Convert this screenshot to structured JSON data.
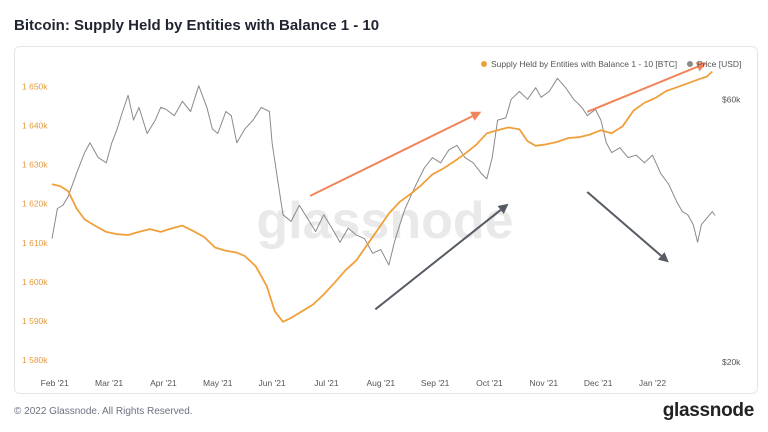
{
  "page": {
    "title": "Bitcoin: Supply Held by Entities with Balance 1 - 10",
    "copyright": "© 2022 Glassnode. All Rights Reserved.",
    "logo_text": "glassnode",
    "watermark": "glassnode"
  },
  "chart_data": {
    "type": "line",
    "title": "Bitcoin: Supply Held by Entities with Balance 1 - 10",
    "x_ticks": [
      "Feb '21",
      "Mar '21",
      "Apr '21",
      "May '21",
      "Jun '21",
      "Jul '21",
      "Aug '21",
      "Sep '21",
      "Oct '21",
      "Nov '21",
      "Dec '21",
      "Jan '22"
    ],
    "x_range": [
      0,
      12.2
    ],
    "y_left": {
      "ticks": [
        "1 580k",
        "1 590k",
        "1 600k",
        "1 610k",
        "1 620k",
        "1 630k",
        "1 640k",
        "1 650k"
      ],
      "range": [
        1578000,
        1657000
      ]
    },
    "y_right": {
      "ticks": [
        "$20k",
        "$60k"
      ],
      "log": true,
      "range": [
        19500,
        71000
      ]
    },
    "legend_position": "top-right",
    "grid": false,
    "series": [
      {
        "name": "Supply Held by Entities with Balance 1 - 10 [BTC]",
        "axis": "left",
        "color": "#f0a03a",
        "points": [
          [
            0.0,
            1625000
          ],
          [
            0.15,
            1624500
          ],
          [
            0.3,
            1623200
          ],
          [
            0.45,
            1618800
          ],
          [
            0.6,
            1616000
          ],
          [
            0.8,
            1614300
          ],
          [
            1.0,
            1612800
          ],
          [
            1.2,
            1612200
          ],
          [
            1.4,
            1612000
          ],
          [
            1.6,
            1612800
          ],
          [
            1.8,
            1613500
          ],
          [
            2.0,
            1612800
          ],
          [
            2.2,
            1613700
          ],
          [
            2.4,
            1614400
          ],
          [
            2.6,
            1613000
          ],
          [
            2.8,
            1611500
          ],
          [
            3.0,
            1608800
          ],
          [
            3.2,
            1608000
          ],
          [
            3.4,
            1607500
          ],
          [
            3.55,
            1606600
          ],
          [
            3.75,
            1604000
          ],
          [
            3.95,
            1599000
          ],
          [
            4.1,
            1592500
          ],
          [
            4.25,
            1589800
          ],
          [
            4.4,
            1590800
          ],
          [
            4.6,
            1592500
          ],
          [
            4.8,
            1594200
          ],
          [
            5.0,
            1596800
          ],
          [
            5.2,
            1599800
          ],
          [
            5.4,
            1603000
          ],
          [
            5.6,
            1605500
          ],
          [
            5.8,
            1609500
          ],
          [
            6.0,
            1613500
          ],
          [
            6.2,
            1617500
          ],
          [
            6.4,
            1620500
          ],
          [
            6.6,
            1622500
          ],
          [
            6.8,
            1624800
          ],
          [
            7.0,
            1627500
          ],
          [
            7.2,
            1629000
          ],
          [
            7.4,
            1630800
          ],
          [
            7.6,
            1632800
          ],
          [
            7.8,
            1635000
          ],
          [
            8.0,
            1638000
          ],
          [
            8.2,
            1638800
          ],
          [
            8.4,
            1639500
          ],
          [
            8.6,
            1639000
          ],
          [
            8.75,
            1636000
          ],
          [
            8.9,
            1634800
          ],
          [
            9.1,
            1635200
          ],
          [
            9.3,
            1635800
          ],
          [
            9.5,
            1636800
          ],
          [
            9.7,
            1637000
          ],
          [
            9.9,
            1637700
          ],
          [
            10.1,
            1638800
          ],
          [
            10.3,
            1638000
          ],
          [
            10.5,
            1639800
          ],
          [
            10.7,
            1643800
          ],
          [
            10.9,
            1645800
          ],
          [
            11.1,
            1647000
          ],
          [
            11.3,
            1648800
          ],
          [
            11.5,
            1649800
          ],
          [
            11.7,
            1650800
          ],
          [
            11.9,
            1651800
          ],
          [
            12.05,
            1652500
          ],
          [
            12.15,
            1653800
          ]
        ]
      },
      {
        "name": "Price [USD]",
        "axis": "right",
        "color": "#8a8a8a",
        "points": [
          [
            0.0,
            33500
          ],
          [
            0.1,
            38000
          ],
          [
            0.2,
            38500
          ],
          [
            0.3,
            40000
          ],
          [
            0.45,
            44000
          ],
          [
            0.6,
            48000
          ],
          [
            0.7,
            50000
          ],
          [
            0.85,
            47000
          ],
          [
            1.0,
            46000
          ],
          [
            1.1,
            50000
          ],
          [
            1.2,
            53000
          ],
          [
            1.3,
            57000
          ],
          [
            1.4,
            61000
          ],
          [
            1.5,
            55000
          ],
          [
            1.6,
            58000
          ],
          [
            1.75,
            52000
          ],
          [
            1.9,
            55000
          ],
          [
            2.0,
            58000
          ],
          [
            2.1,
            57500
          ],
          [
            2.25,
            56000
          ],
          [
            2.4,
            59500
          ],
          [
            2.55,
            57000
          ],
          [
            2.7,
            63500
          ],
          [
            2.85,
            58000
          ],
          [
            2.95,
            53000
          ],
          [
            3.05,
            52000
          ],
          [
            3.2,
            57000
          ],
          [
            3.3,
            56000
          ],
          [
            3.4,
            50000
          ],
          [
            3.55,
            53000
          ],
          [
            3.7,
            55000
          ],
          [
            3.85,
            58000
          ],
          [
            4.0,
            57000
          ],
          [
            4.05,
            50000
          ],
          [
            4.15,
            43000
          ],
          [
            4.25,
            37000
          ],
          [
            4.4,
            36000
          ],
          [
            4.55,
            38500
          ],
          [
            4.7,
            36500
          ],
          [
            4.85,
            34500
          ],
          [
            5.0,
            37000
          ],
          [
            5.15,
            35000
          ],
          [
            5.3,
            33000
          ],
          [
            5.45,
            35000
          ],
          [
            5.6,
            34000
          ],
          [
            5.75,
            33500
          ],
          [
            5.9,
            31500
          ],
          [
            6.05,
            32000
          ],
          [
            6.2,
            30000
          ],
          [
            6.3,
            33000
          ],
          [
            6.4,
            35500
          ],
          [
            6.5,
            38000
          ],
          [
            6.6,
            40000
          ],
          [
            6.7,
            42000
          ],
          [
            6.85,
            45000
          ],
          [
            7.0,
            47000
          ],
          [
            7.15,
            46000
          ],
          [
            7.3,
            48500
          ],
          [
            7.45,
            49500
          ],
          [
            7.6,
            47000
          ],
          [
            7.75,
            46000
          ],
          [
            7.9,
            44000
          ],
          [
            8.0,
            43000
          ],
          [
            8.1,
            47000
          ],
          [
            8.2,
            55000
          ],
          [
            8.35,
            55500
          ],
          [
            8.45,
            60000
          ],
          [
            8.6,
            62000
          ],
          [
            8.75,
            60000
          ],
          [
            8.9,
            63000
          ],
          [
            9.0,
            60500
          ],
          [
            9.15,
            62000
          ],
          [
            9.3,
            65500
          ],
          [
            9.45,
            63000
          ],
          [
            9.6,
            60000
          ],
          [
            9.75,
            58000
          ],
          [
            9.85,
            56000
          ],
          [
            10.0,
            57500
          ],
          [
            10.1,
            55000
          ],
          [
            10.2,
            50000
          ],
          [
            10.3,
            48000
          ],
          [
            10.45,
            49000
          ],
          [
            10.6,
            47000
          ],
          [
            10.75,
            47500
          ],
          [
            10.9,
            46000
          ],
          [
            11.05,
            47500
          ],
          [
            11.2,
            44000
          ],
          [
            11.35,
            42000
          ],
          [
            11.5,
            39000
          ],
          [
            11.6,
            37500
          ],
          [
            11.7,
            37000
          ],
          [
            11.8,
            35500
          ],
          [
            11.88,
            33000
          ],
          [
            11.95,
            35500
          ],
          [
            12.05,
            36500
          ],
          [
            12.15,
            37500
          ],
          [
            12.2,
            36900
          ]
        ]
      }
    ],
    "annotations": {
      "arrows": [
        {
          "color": "#f0855a",
          "from": [
            4.75,
            1622000
          ],
          "to": [
            7.9,
            1643500
          ]
        },
        {
          "color": "#f0855a",
          "from": [
            9.85,
            1643500
          ],
          "to": [
            12.05,
            1656000
          ]
        },
        {
          "color": "#555a63",
          "from": [
            5.95,
            1593000
          ],
          "to": [
            8.4,
            1620000
          ]
        },
        {
          "color": "#555a63",
          "from": [
            9.85,
            1623000
          ],
          "to": [
            11.35,
            1605000
          ]
        }
      ]
    }
  }
}
